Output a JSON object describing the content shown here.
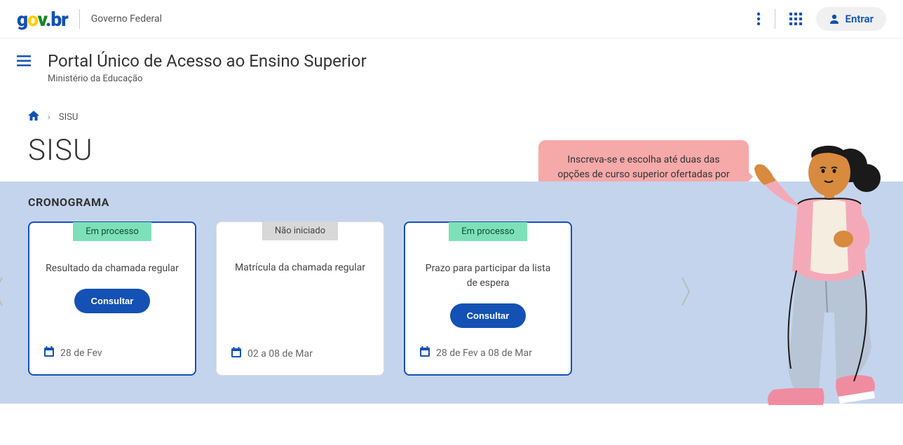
{
  "header": {
    "logo_text": "gov.br",
    "subtitle": "Governo Federal",
    "login_label": "Entrar"
  },
  "subheader": {
    "title": "Portal Único de Acesso ao Ensino Superior",
    "ministry": "Ministério da Educação"
  },
  "breadcrumb": {
    "current": "SISU"
  },
  "page": {
    "title": "SISU"
  },
  "info_bubble": {
    "text": "Inscreva-se e escolha até duas das opções de curso superior ofertadas por instituições públicas."
  },
  "cronograma": {
    "section_title": "CRONOGRAMA",
    "cards": [
      {
        "status": "Em processo",
        "status_type": "green",
        "active": true,
        "text": "Resultado da chamada regular",
        "has_button": true,
        "button_label": "Consultar",
        "date": "28 de Fev"
      },
      {
        "status": "Não iniciado",
        "status_type": "gray",
        "active": false,
        "text": "Matrícula da chamada regular",
        "has_button": false,
        "date": "02 a 08 de Mar"
      },
      {
        "status": "Em processo",
        "status_type": "green",
        "active": true,
        "text": "Prazo para participar da lista de espera",
        "has_button": true,
        "button_label": "Consultar",
        "date": "28 de Fev a 08 de Mar"
      }
    ]
  },
  "colors": {
    "primary": "#1351b4",
    "bg_section": "#c5d4ed",
    "badge_green": "#7ee0b8",
    "badge_gray": "#d8d8d8",
    "bubble": "#f5a9a9"
  }
}
